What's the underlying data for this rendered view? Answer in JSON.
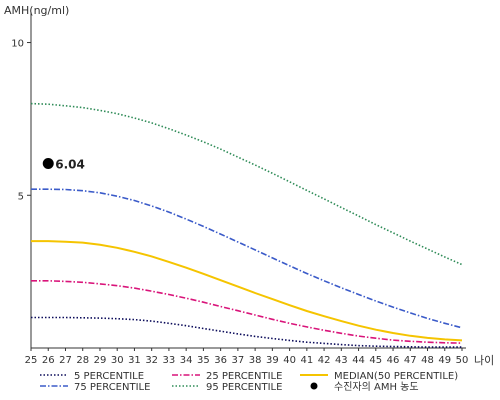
{
  "chart_data": {
    "type": "line",
    "ylabel": "AMH(ng/ml)",
    "xlabel": "나이",
    "x": [
      25,
      26,
      27,
      28,
      29,
      30,
      31,
      32,
      33,
      34,
      35,
      36,
      37,
      38,
      39,
      40,
      41,
      42,
      43,
      44,
      45,
      46,
      47,
      48,
      49,
      50
    ],
    "xlim": [
      25,
      50
    ],
    "ylim": [
      0,
      11
    ],
    "yticks": [
      5,
      10
    ],
    "grid": false,
    "legend_placement": "bottom",
    "series": [
      {
        "name": "5 PERCENTILE",
        "color": "#0b0b5a",
        "dash": "dotted",
        "values": [
          1.0,
          1.0,
          1.0,
          0.99,
          0.98,
          0.96,
          0.93,
          0.88,
          0.81,
          0.73,
          0.64,
          0.55,
          0.46,
          0.38,
          0.31,
          0.25,
          0.19,
          0.15,
          0.11,
          0.08,
          0.06,
          0.05,
          0.04,
          0.03,
          0.03,
          0.03
        ]
      },
      {
        "name": "25 PERCENTILE",
        "color": "#d9147a",
        "dash": "dashdot",
        "values": [
          2.2,
          2.2,
          2.18,
          2.15,
          2.1,
          2.04,
          1.96,
          1.86,
          1.75,
          1.63,
          1.5,
          1.36,
          1.22,
          1.08,
          0.94,
          0.81,
          0.69,
          0.58,
          0.48,
          0.39,
          0.32,
          0.26,
          0.22,
          0.19,
          0.17,
          0.16
        ]
      },
      {
        "name": "MEDIAN(50 PERCENTILE)",
        "color": "#f5c400",
        "dash": "solid",
        "values": [
          3.5,
          3.5,
          3.48,
          3.45,
          3.38,
          3.28,
          3.15,
          3.0,
          2.82,
          2.63,
          2.43,
          2.22,
          2.01,
          1.8,
          1.6,
          1.4,
          1.21,
          1.04,
          0.88,
          0.73,
          0.6,
          0.49,
          0.4,
          0.33,
          0.28,
          0.25
        ]
      },
      {
        "name": "75 PERCENTILE",
        "color": "#3b5bc9",
        "dash": "dashdot",
        "values": [
          5.2,
          5.2,
          5.19,
          5.15,
          5.08,
          4.97,
          4.83,
          4.65,
          4.45,
          4.22,
          3.98,
          3.73,
          3.47,
          3.21,
          2.95,
          2.69,
          2.44,
          2.2,
          1.97,
          1.75,
          1.54,
          1.34,
          1.15,
          0.97,
          0.81,
          0.66
        ]
      },
      {
        "name": "95 PERCENTILE",
        "color": "#2e8b57",
        "dash": "dotted",
        "values": [
          8.0,
          7.98,
          7.93,
          7.87,
          7.78,
          7.67,
          7.53,
          7.37,
          7.18,
          6.97,
          6.75,
          6.51,
          6.25,
          5.99,
          5.72,
          5.44,
          5.16,
          4.88,
          4.6,
          4.32,
          4.04,
          3.77,
          3.5,
          3.24,
          2.98,
          2.73
        ]
      }
    ],
    "marker": {
      "name": "수진자의 AMH 농도",
      "x": 26,
      "y": 6.04,
      "label": "6.04",
      "color": "#000000"
    }
  }
}
